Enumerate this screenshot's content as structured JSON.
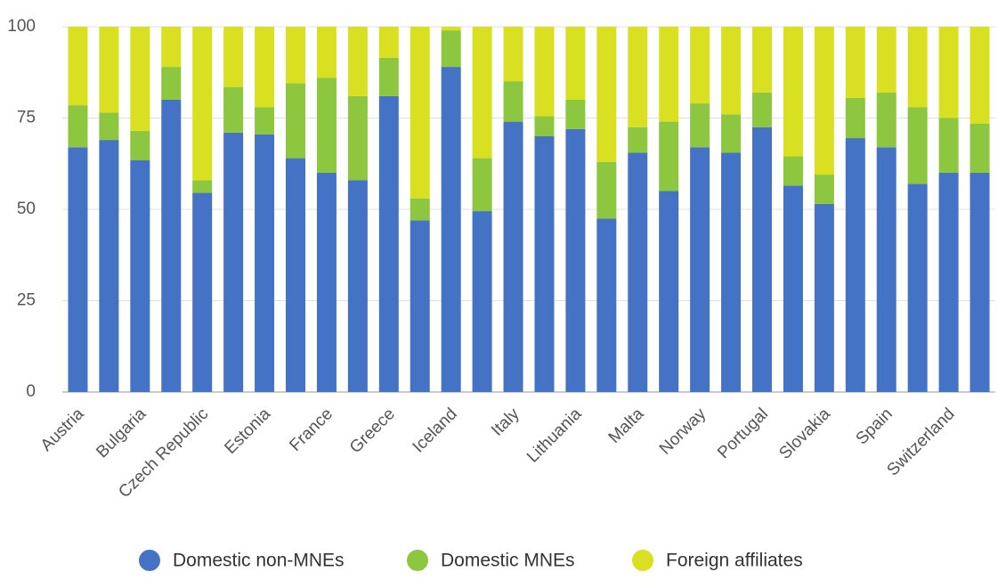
{
  "chart_data": {
    "type": "stacked_bar",
    "categories": [
      "Austria",
      null,
      "Bulgaria",
      null,
      "Czech Republic",
      null,
      "Estonia",
      null,
      "France",
      null,
      "Greece",
      null,
      "Iceland",
      null,
      "Italy",
      null,
      "Lithuania",
      null,
      "Malta",
      null,
      "Norway",
      null,
      "Portugal",
      null,
      "Slovakia",
      null,
      "Spain",
      null,
      "Switzerland",
      null
    ],
    "series": [
      {
        "name": "Domestic non-MNEs",
        "color": "#4472c4",
        "values": [
          67,
          69,
          63.5,
          80,
          54.5,
          71,
          70.5,
          64,
          60,
          58,
          81,
          47,
          89,
          49.5,
          74,
          70,
          72,
          47.5,
          65.5,
          55,
          67,
          65.5,
          72.5,
          56.5,
          51.5,
          69.5,
          67,
          57,
          60,
          60
        ]
      },
      {
        "name": "Domestic MNEs",
        "color": "#8dc63f",
        "values": [
          11.5,
          7.5,
          8,
          9,
          3.5,
          12.5,
          7.5,
          20.5,
          26,
          23,
          10.5,
          6,
          10,
          14.5,
          11,
          5.5,
          8,
          15.5,
          7,
          19,
          12,
          10.5,
          9.5,
          8,
          8,
          11,
          15,
          21,
          15,
          13.5
        ]
      },
      {
        "name": "Foreign affiliates",
        "color": "#d9e021",
        "values": [
          21.5,
          23.5,
          28.5,
          11,
          42,
          16.5,
          22,
          15.5,
          14,
          19,
          8.5,
          47,
          1,
          36,
          15,
          24.5,
          20,
          37,
          27.5,
          26,
          21,
          24,
          18,
          35.5,
          40.5,
          19.5,
          18,
          22,
          25,
          26.5
        ]
      }
    ],
    "ylim": [
      0,
      100
    ],
    "yticks": [
      0,
      25,
      50,
      75,
      100
    ],
    "grid": true
  }
}
